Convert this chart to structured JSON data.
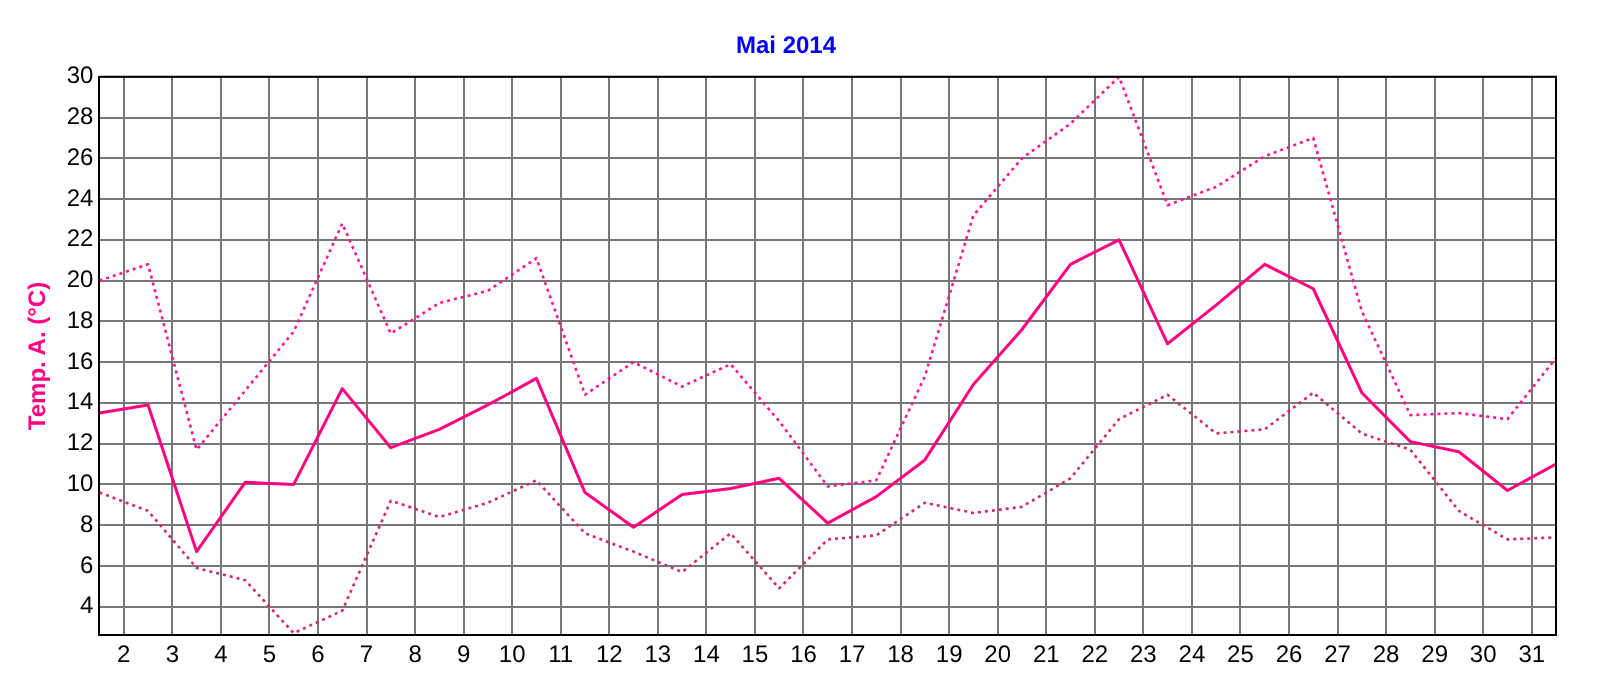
{
  "chart_data": {
    "type": "line",
    "title": "Mai 2014",
    "ylabel": "Temp. A. (°C)",
    "x": [
      1.5,
      2.5,
      3.5,
      4.5,
      5.5,
      6.5,
      7.5,
      8.5,
      9.5,
      10.5,
      11.5,
      12.5,
      13.5,
      14.5,
      15.5,
      16.5,
      17.5,
      18.5,
      19.5,
      20.5,
      21.5,
      22.5,
      23.5,
      24.5,
      25.5,
      26.5,
      27.5,
      28.5,
      29.5,
      30.5,
      31.5
    ],
    "series": [
      {
        "color": "#ff1493",
        "line_style": "dotted",
        "values": [
          20.0,
          20.8,
          11.7,
          14.6,
          17.5,
          22.8,
          17.4,
          18.9,
          19.5,
          21.1,
          14.4,
          16.0,
          14.8,
          15.9,
          13.1,
          9.9,
          10.2,
          15.3,
          23.2,
          26.0,
          27.7,
          30.0,
          23.7,
          24.6,
          26.1,
          27.0,
          18.5,
          13.4,
          13.5,
          13.2,
          16.2
        ]
      },
      {
        "color": "#ff0080",
        "line_style": "solid",
        "values": [
          13.5,
          13.9,
          6.7,
          10.1,
          10.0,
          14.7,
          11.8,
          12.7,
          13.9,
          15.2,
          9.6,
          7.9,
          9.5,
          9.8,
          10.3,
          8.1,
          9.4,
          11.2,
          14.9,
          17.6,
          20.8,
          22.0,
          16.9,
          18.8,
          20.8,
          19.6,
          14.5,
          12.1,
          11.6,
          9.7,
          11.0
        ]
      },
      {
        "color": "#d02a6e",
        "line_style": "dotted",
        "values": [
          9.6,
          8.7,
          5.9,
          5.3,
          2.7,
          3.8,
          9.2,
          8.4,
          9.1,
          10.2,
          7.6,
          6.7,
          5.7,
          7.6,
          4.9,
          7.3,
          7.5,
          9.1,
          8.6,
          8.9,
          10.3,
          13.2,
          14.4,
          12.5,
          12.7,
          14.5,
          12.5,
          11.7,
          8.7,
          7.3,
          7.4
        ]
      }
    ],
    "xlim": [
      1.5,
      31.5
    ],
    "xticks": [
      2,
      3,
      4,
      5,
      6,
      7,
      8,
      9,
      10,
      11,
      12,
      13,
      14,
      15,
      16,
      17,
      18,
      19,
      20,
      21,
      22,
      23,
      24,
      25,
      26,
      27,
      28,
      29,
      30,
      31
    ],
    "ylim": [
      2.6,
      30
    ],
    "yticks": [
      4,
      6,
      8,
      10,
      12,
      14,
      16,
      18,
      20,
      22,
      24,
      26,
      28,
      30
    ],
    "grid": true,
    "marker": "none"
  }
}
